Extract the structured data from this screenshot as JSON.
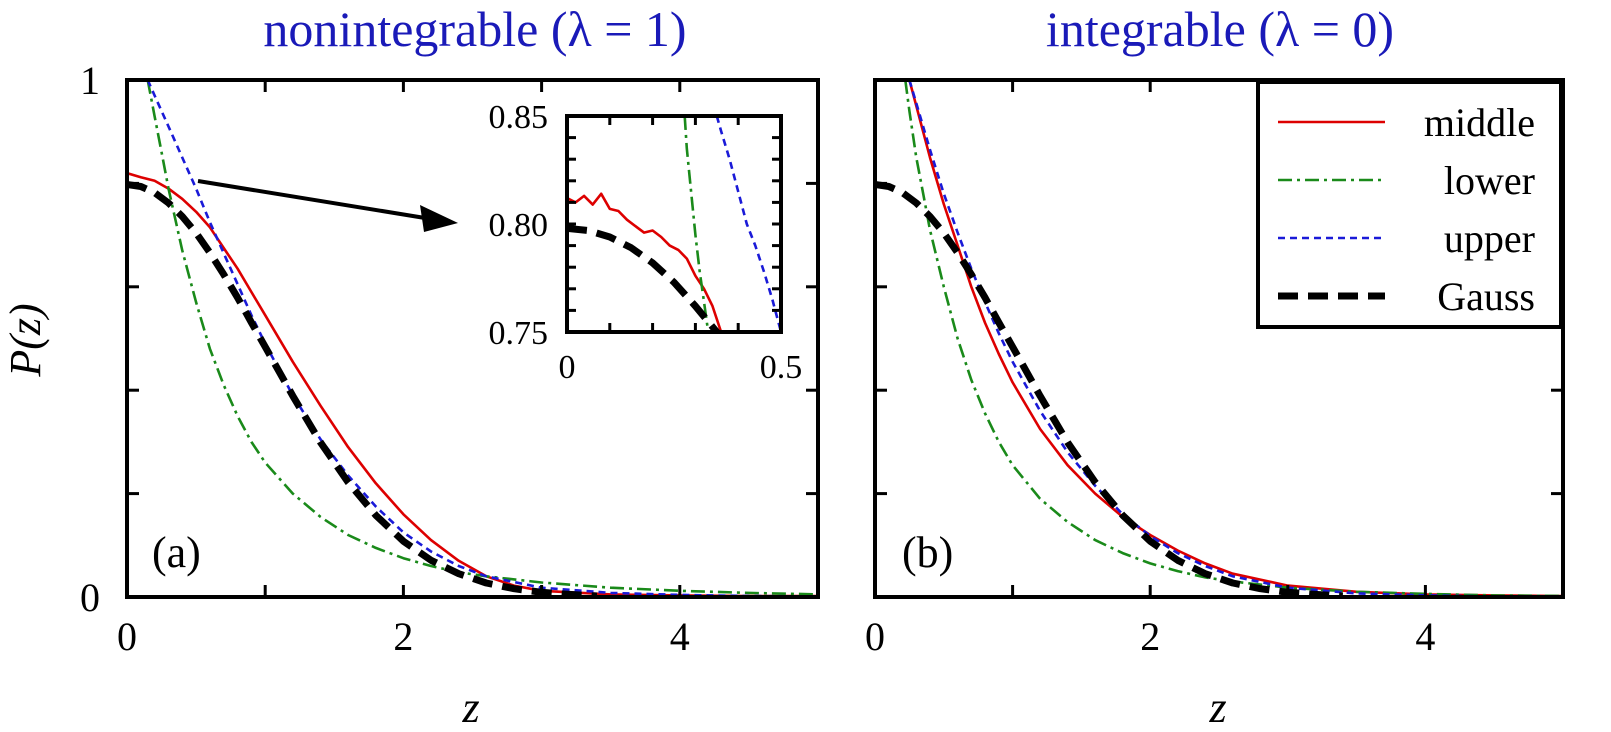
{
  "chart_data": [
    {
      "type": "line",
      "title": "nonintegrable (λ = 1)",
      "panel_label": "(a)",
      "xlabel": "z",
      "ylabel": "P(z)",
      "xlim": [
        0,
        5
      ],
      "ylim": [
        0,
        1
      ],
      "x_ticks": [
        "0",
        "2",
        "4"
      ],
      "y_ticks": [
        "0",
        "1"
      ],
      "legend": "none",
      "series": [
        {
          "name": "middle",
          "color": "#dd0000",
          "dash": "solid",
          "x": [
            0,
            0.1,
            0.2,
            0.3,
            0.4,
            0.5,
            0.6,
            0.7,
            0.8,
            0.9,
            1.0,
            1.2,
            1.4,
            1.6,
            1.8,
            2.0,
            2.2,
            2.4,
            2.6,
            2.8,
            3.0,
            3.5,
            4.0,
            4.5,
            5.0
          ],
          "y": [
            0.82,
            0.812,
            0.805,
            0.79,
            0.77,
            0.745,
            0.715,
            0.675,
            0.635,
            0.59,
            0.545,
            0.455,
            0.37,
            0.29,
            0.22,
            0.16,
            0.11,
            0.07,
            0.04,
            0.022,
            0.012,
            0.005,
            0.003,
            0.002,
            0.002
          ]
        },
        {
          "name": "lower",
          "color": "#1a8a1a",
          "dash": "dashdot",
          "x": [
            0.15,
            0.2,
            0.25,
            0.3,
            0.35,
            0.4,
            0.5,
            0.6,
            0.7,
            0.8,
            0.9,
            1.0,
            1.2,
            1.4,
            1.6,
            1.8,
            2.0,
            2.2,
            2.4,
            2.6,
            3.0,
            3.5,
            4.0,
            4.5,
            5.0
          ],
          "y": [
            1.0,
            0.93,
            0.86,
            0.79,
            0.73,
            0.67,
            0.57,
            0.48,
            0.41,
            0.35,
            0.3,
            0.26,
            0.2,
            0.155,
            0.12,
            0.095,
            0.075,
            0.06,
            0.048,
            0.04,
            0.028,
            0.018,
            0.012,
            0.008,
            0.005
          ]
        },
        {
          "name": "upper",
          "color": "#1a1ad8",
          "dash": "dashed",
          "x": [
            0.15,
            0.2,
            0.3,
            0.4,
            0.5,
            0.6,
            0.7,
            0.8,
            0.9,
            1.0,
            1.2,
            1.4,
            1.6,
            1.8,
            2.0,
            2.2,
            2.4,
            2.6,
            3.0,
            3.5,
            4.0,
            4.5,
            5.0
          ],
          "y": [
            1.0,
            0.97,
            0.91,
            0.85,
            0.79,
            0.725,
            0.665,
            0.605,
            0.545,
            0.49,
            0.39,
            0.305,
            0.235,
            0.175,
            0.125,
            0.088,
            0.06,
            0.04,
            0.018,
            0.008,
            0.004,
            0.002,
            0.001
          ]
        },
        {
          "name": "Gauss",
          "color": "#000000",
          "dash": "heavy-dashed",
          "x": [
            0,
            0.1,
            0.2,
            0.3,
            0.4,
            0.5,
            0.6,
            0.7,
            0.8,
            0.9,
            1.0,
            1.2,
            1.4,
            1.6,
            1.8,
            2.0,
            2.2,
            2.4,
            2.6,
            2.8,
            3.0,
            3.2,
            3.4
          ],
          "y": [
            0.798,
            0.794,
            0.782,
            0.762,
            0.736,
            0.704,
            0.666,
            0.624,
            0.579,
            0.531,
            0.484,
            0.389,
            0.299,
            0.222,
            0.158,
            0.108,
            0.071,
            0.045,
            0.027,
            0.016,
            0.009,
            0.005,
            0.002
          ]
        }
      ],
      "inset": {
        "xlim": [
          0,
          0.5
        ],
        "ylim": [
          0.75,
          0.85
        ],
        "x_ticks": [
          "0",
          "0.5"
        ],
        "y_ticks": [
          "0.75",
          "0.80",
          "0.85"
        ],
        "series": [
          {
            "name": "middle",
            "color": "#dd0000",
            "dash": "solid",
            "x": [
              0,
              0.02,
              0.04,
              0.06,
              0.08,
              0.1,
              0.12,
              0.14,
              0.16,
              0.18,
              0.2,
              0.22,
              0.24,
              0.26,
              0.28,
              0.3,
              0.32,
              0.34,
              0.36
            ],
            "y": [
              0.812,
              0.81,
              0.813,
              0.809,
              0.814,
              0.807,
              0.806,
              0.802,
              0.799,
              0.796,
              0.797,
              0.794,
              0.79,
              0.788,
              0.784,
              0.776,
              0.77,
              0.762,
              0.75
            ]
          },
          {
            "name": "lower",
            "color": "#1a8a1a",
            "dash": "dashdot",
            "x": [
              0.275,
              0.28,
              0.29,
              0.3,
              0.31,
              0.32,
              0.33
            ],
            "y": [
              0.85,
              0.835,
              0.815,
              0.795,
              0.778,
              0.764,
              0.75
            ]
          },
          {
            "name": "upper",
            "color": "#1a1ad8",
            "dash": "dashed",
            "x": [
              0.35,
              0.36,
              0.38,
              0.4,
              0.42,
              0.44,
              0.46,
              0.48,
              0.5
            ],
            "y": [
              0.85,
              0.843,
              0.83,
              0.815,
              0.8,
              0.79,
              0.778,
              0.765,
              0.75
            ]
          },
          {
            "name": "Gauss",
            "color": "#000000",
            "dash": "heavy-dashed",
            "x": [
              0,
              0.05,
              0.1,
              0.15,
              0.2,
              0.25,
              0.3,
              0.35
            ],
            "y": [
              0.798,
              0.797,
              0.794,
              0.789,
              0.782,
              0.773,
              0.762,
              0.75
            ]
          }
        ]
      }
    },
    {
      "type": "line",
      "title": "integrable (λ = 0)",
      "panel_label": "(b)",
      "xlabel": "z",
      "ylabel": "",
      "xlim": [
        0,
        5
      ],
      "ylim": [
        0,
        1
      ],
      "x_ticks": [
        "0",
        "2",
        "4"
      ],
      "y_ticks": [],
      "legend": "top-right",
      "series": [
        {
          "name": "middle",
          "color": "#dd0000",
          "dash": "solid",
          "x": [
            0.25,
            0.3,
            0.4,
            0.5,
            0.6,
            0.7,
            0.8,
            0.9,
            1.0,
            1.2,
            1.4,
            1.6,
            1.8,
            2.0,
            2.2,
            2.4,
            2.6,
            3.0,
            3.5,
            4.0,
            4.5,
            5.0
          ],
          "y": [
            1.0,
            0.95,
            0.85,
            0.76,
            0.68,
            0.6,
            0.53,
            0.47,
            0.415,
            0.325,
            0.255,
            0.2,
            0.155,
            0.12,
            0.09,
            0.065,
            0.045,
            0.022,
            0.01,
            0.005,
            0.003,
            0.002
          ]
        },
        {
          "name": "lower",
          "color": "#1a8a1a",
          "dash": "dashdot",
          "x": [
            0.22,
            0.25,
            0.3,
            0.35,
            0.4,
            0.5,
            0.6,
            0.7,
            0.8,
            0.9,
            1.0,
            1.2,
            1.4,
            1.6,
            1.8,
            2.0,
            2.2,
            2.4,
            2.6,
            3.0,
            3.5,
            4.0,
            4.5,
            5.0
          ],
          "y": [
            1.0,
            0.94,
            0.85,
            0.78,
            0.71,
            0.6,
            0.5,
            0.42,
            0.355,
            0.3,
            0.255,
            0.19,
            0.145,
            0.11,
            0.085,
            0.065,
            0.05,
            0.038,
            0.03,
            0.018,
            0.01,
            0.006,
            0.003,
            0.002
          ]
        },
        {
          "name": "upper",
          "color": "#1a1ad8",
          "dash": "dashed",
          "x": [
            0.25,
            0.3,
            0.4,
            0.5,
            0.6,
            0.7,
            0.8,
            0.9,
            1.0,
            1.2,
            1.4,
            1.6,
            1.8,
            2.0,
            2.2,
            2.4,
            2.6,
            3.0,
            3.5,
            4.0,
            4.5,
            5.0
          ],
          "y": [
            1.0,
            0.955,
            0.865,
            0.78,
            0.705,
            0.635,
            0.57,
            0.51,
            0.455,
            0.36,
            0.28,
            0.215,
            0.16,
            0.118,
            0.085,
            0.06,
            0.04,
            0.018,
            0.007,
            0.003,
            0.001,
            0.001
          ]
        },
        {
          "name": "Gauss",
          "color": "#000000",
          "dash": "heavy-dashed",
          "x": [
            0,
            0.1,
            0.2,
            0.3,
            0.4,
            0.5,
            0.6,
            0.7,
            0.8,
            0.9,
            1.0,
            1.2,
            1.4,
            1.6,
            1.8,
            2.0,
            2.2,
            2.4,
            2.6,
            2.8,
            3.0,
            3.2,
            3.4
          ],
          "y": [
            0.798,
            0.794,
            0.782,
            0.762,
            0.736,
            0.704,
            0.666,
            0.624,
            0.579,
            0.531,
            0.484,
            0.389,
            0.299,
            0.222,
            0.158,
            0.108,
            0.071,
            0.045,
            0.027,
            0.016,
            0.009,
            0.005,
            0.002
          ]
        }
      ]
    }
  ]
}
